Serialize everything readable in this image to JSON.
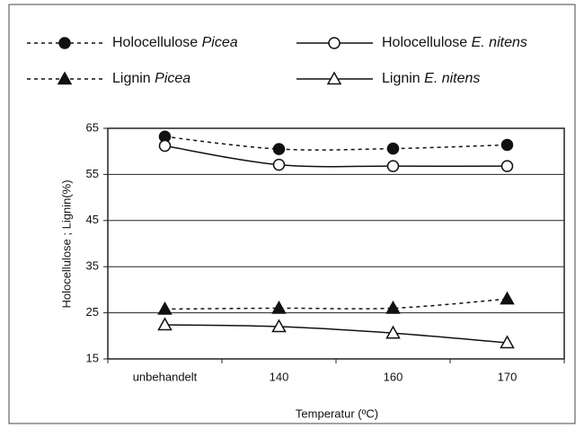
{
  "chart_data": {
    "type": "line",
    "categories": [
      "unbehandelt",
      "140",
      "160",
      "170"
    ],
    "series": [
      {
        "name": "Holocellulose Picea",
        "color": "#111111",
        "dashed": true,
        "marker": "circle",
        "filled": true,
        "values": [
          63.2,
          60.5,
          60.6,
          61.4
        ]
      },
      {
        "name": "Holocellulose E. nitens",
        "color": "#111111",
        "dashed": false,
        "marker": "circle",
        "filled": false,
        "values": [
          61.2,
          57.1,
          56.8,
          56.8
        ]
      },
      {
        "name": "Lignin Picea",
        "color": "#111111",
        "dashed": true,
        "marker": "triangle",
        "filled": true,
        "values": [
          25.8,
          26.0,
          26.0,
          28.0
        ]
      },
      {
        "name": "Lignin E. nitens",
        "color": "#111111",
        "dashed": false,
        "marker": "triangle",
        "filled": false,
        "values": [
          22.4,
          22.0,
          20.6,
          18.5
        ]
      }
    ],
    "y_label": "Holocellulose ; Lignin(%)",
    "x_label": "Temperatur (ºC)",
    "ylim": [
      15,
      65
    ],
    "yticks": [
      15,
      25,
      35,
      45,
      55,
      65
    ],
    "grid": true
  }
}
